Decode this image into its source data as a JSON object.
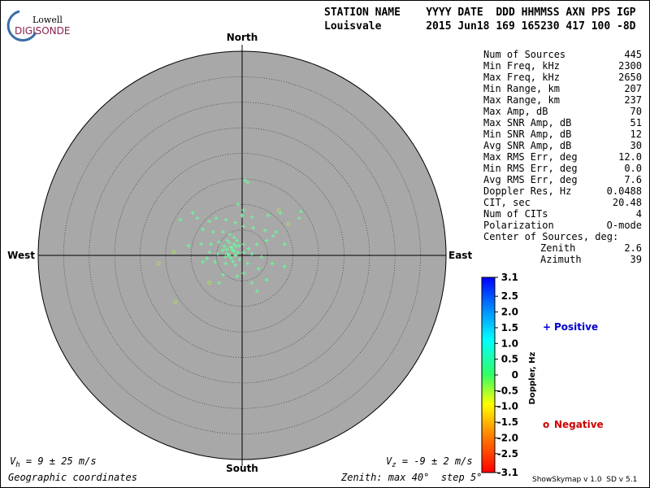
{
  "logo": {
    "top": "Lowell",
    "bottom": "DIGISONDE"
  },
  "header": {
    "line1": "STATION NAME    YYYY DATE  DDD HHMMSS AXN PPS IGP",
    "line2": "Louisvale       2015 Jun18 169 165230 417 100 -8D"
  },
  "stats": [
    {
      "label": "Num of Sources",
      "value": "445"
    },
    {
      "label": "Min Freq, kHz",
      "value": "2300"
    },
    {
      "label": "Max Freq, kHz",
      "value": "2650"
    },
    {
      "label": "Min Range, km",
      "value": "207"
    },
    {
      "label": "Max Range, km",
      "value": "237"
    },
    {
      "label": "Max Amp, dB",
      "value": "70"
    },
    {
      "label": "Max SNR Amp, dB",
      "value": "51"
    },
    {
      "label": "Min SNR Amp, dB",
      "value": "12"
    },
    {
      "label": "Avg SNR Amp, dB",
      "value": "30"
    },
    {
      "label": "Max RMS Err, deg",
      "value": "12.0"
    },
    {
      "label": "Min RMS Err, deg",
      "value": "0.0"
    },
    {
      "label": "Avg RMS Err, deg",
      "value": "7.6"
    },
    {
      "label": "Doppler Res, Hz",
      "value": "0.0488"
    },
    {
      "label": "CIT, sec",
      "value": "20.48"
    },
    {
      "label": "Num of CITs",
      "value": "4"
    },
    {
      "label": "Polarization",
      "value": "O-mode"
    }
  ],
  "center": {
    "title": "Center of Sources, deg:",
    "rows": [
      {
        "label": "Zenith",
        "value": "2.6"
      },
      {
        "label": "Azimuth",
        "value": "39"
      }
    ]
  },
  "chart_data": {
    "type": "polar-scatter",
    "directions": {
      "north": "North",
      "south": "South",
      "east": "East",
      "west": "West"
    },
    "xlim": [
      -40,
      40
    ],
    "ylim": [
      -40,
      40
    ],
    "rings": [
      5,
      10,
      15,
      20,
      25,
      30,
      35
    ],
    "series": [
      {
        "name": "Positive",
        "marker": "+",
        "color": "#66ff99",
        "legend_color": "#0000cc",
        "x": [
          0.6,
          1.1,
          -0.8,
          0.3,
          0.0,
          1.9,
          5.1,
          7.5,
          11.2,
          11.5,
          -9.7,
          -8.8,
          -12.1,
          -6.4,
          -5.1,
          -3.2,
          -1.3,
          0.3,
          2.2,
          4.5,
          6.7,
          -7.7,
          -5.7,
          -3.7,
          -2.4,
          -1.6,
          -1.0,
          -2.9,
          -4.5,
          -6.1,
          -8.0,
          -10.5,
          -3.5,
          -2.2,
          -0.6,
          0.3,
          1.3,
          2.9,
          4.8,
          6.1,
          8.3,
          -6.4,
          -4.8,
          -2.9,
          -1.3,
          0.3,
          1.9,
          3.8,
          5.9,
          8.3,
          -6.9,
          -7.7,
          -5.3,
          -3.2,
          -1.3,
          1.1,
          3.2,
          0.3,
          -1.0,
          -3.7,
          -4.5,
          1.9,
          2.9,
          4.8,
          -2.6,
          -1.9,
          -1.6,
          -3.8,
          -2.0,
          -1.5,
          -2.5,
          -0.8,
          -3.0,
          -1.2,
          -2.2,
          -0.5,
          -3.3,
          -1.8
        ],
        "y": [
          14.7,
          14.3,
          10.0,
          8.9,
          7.8,
          7.5,
          7.8,
          8.3,
          7.3,
          8.6,
          8.3,
          7.3,
          7.0,
          6.7,
          7.3,
          7.0,
          6.4,
          5.7,
          5.4,
          4.9,
          4.6,
          5.1,
          4.6,
          4.6,
          4.1,
          3.5,
          2.9,
          2.9,
          2.6,
          2.2,
          2.2,
          1.9,
          1.8,
          1.6,
          1.9,
          2.2,
          1.3,
          2.2,
          2.9,
          3.8,
          2.2,
          0.6,
          0.3,
          0.3,
          0.0,
          0.6,
          0.3,
          -0.3,
          -1.6,
          -2.2,
          -0.6,
          -1.3,
          -1.3,
          -1.6,
          -1.9,
          -1.6,
          -2.6,
          -3.5,
          -4.1,
          -3.8,
          -5.4,
          -5.4,
          -7.0,
          -4.8,
          0.0,
          1.0,
          2.2,
          1.0,
          1.5,
          0.8,
          2.5,
          0.5,
          1.2,
          1.8,
          -0.5,
          -0.8,
          -0.3,
          -1.2
        ]
      },
      {
        "name": "Negative",
        "marker": "o",
        "color": "#aadd66",
        "legend_color": "#cc0000",
        "x": [
          -16.4,
          -13.4,
          -13.1,
          -6.4,
          7.2,
          9.1
        ],
        "y": [
          -1.6,
          0.6,
          -9.1,
          -5.4,
          8.8,
          6.2
        ]
      }
    ],
    "colorbar": {
      "label": "Doppler, Hz",
      "lim": [
        -3.1,
        3.1
      ],
      "ticks": [
        3.1,
        2.5,
        {
          "value": 2,
          "label": "2.0"
        },
        1.5,
        {
          "value": 1,
          "label": "1.0"
        },
        0.5,
        0,
        -0.5,
        {
          "value": -1,
          "label": "-1.0"
        },
        -1.5,
        {
          "value": -2,
          "label": "-2.0"
        },
        -2.5,
        -3.1
      ]
    }
  },
  "footer": {
    "vh": {
      "symbol": "V",
      "sub": "h",
      "text": " = 9 ± 25 m/s"
    },
    "vz": {
      "symbol": "V",
      "sub": "z",
      "text": " = -9 ± 2 m/s"
    },
    "coords": "Geographic coordinates",
    "zenith": "Zenith: max 40°  step 5°",
    "version": "ShowSkymap v 1.0  SD v 5.1"
  }
}
